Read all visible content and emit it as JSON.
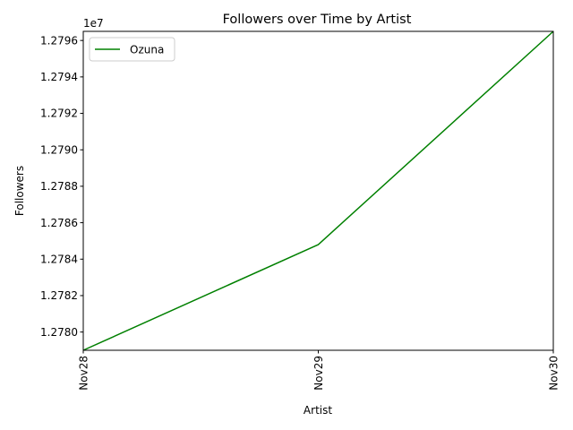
{
  "chart_data": {
    "type": "line",
    "title": "Followers over Time by Artist",
    "xlabel": "Artist",
    "ylabel": "Followers",
    "categories": [
      "Nov28",
      "Nov29",
      "Nov30"
    ],
    "series": [
      {
        "name": "Ozuna",
        "color": "#008000",
        "values": [
          12779000,
          12784800,
          12796500
        ]
      }
    ],
    "ylim": [
      12779000,
      12796500
    ],
    "yticks": [
      12780000,
      12782000,
      12784000,
      12786000,
      12788000,
      12790000,
      12792000,
      12794000,
      12796000
    ],
    "ytick_labels": [
      "1.2780",
      "1.2782",
      "1.2784",
      "1.2786",
      "1.2788",
      "1.2790",
      "1.2792",
      "1.2794",
      "1.2796"
    ],
    "y_offset_label": "1e7",
    "grid": false,
    "legend_position": "upper-left"
  }
}
